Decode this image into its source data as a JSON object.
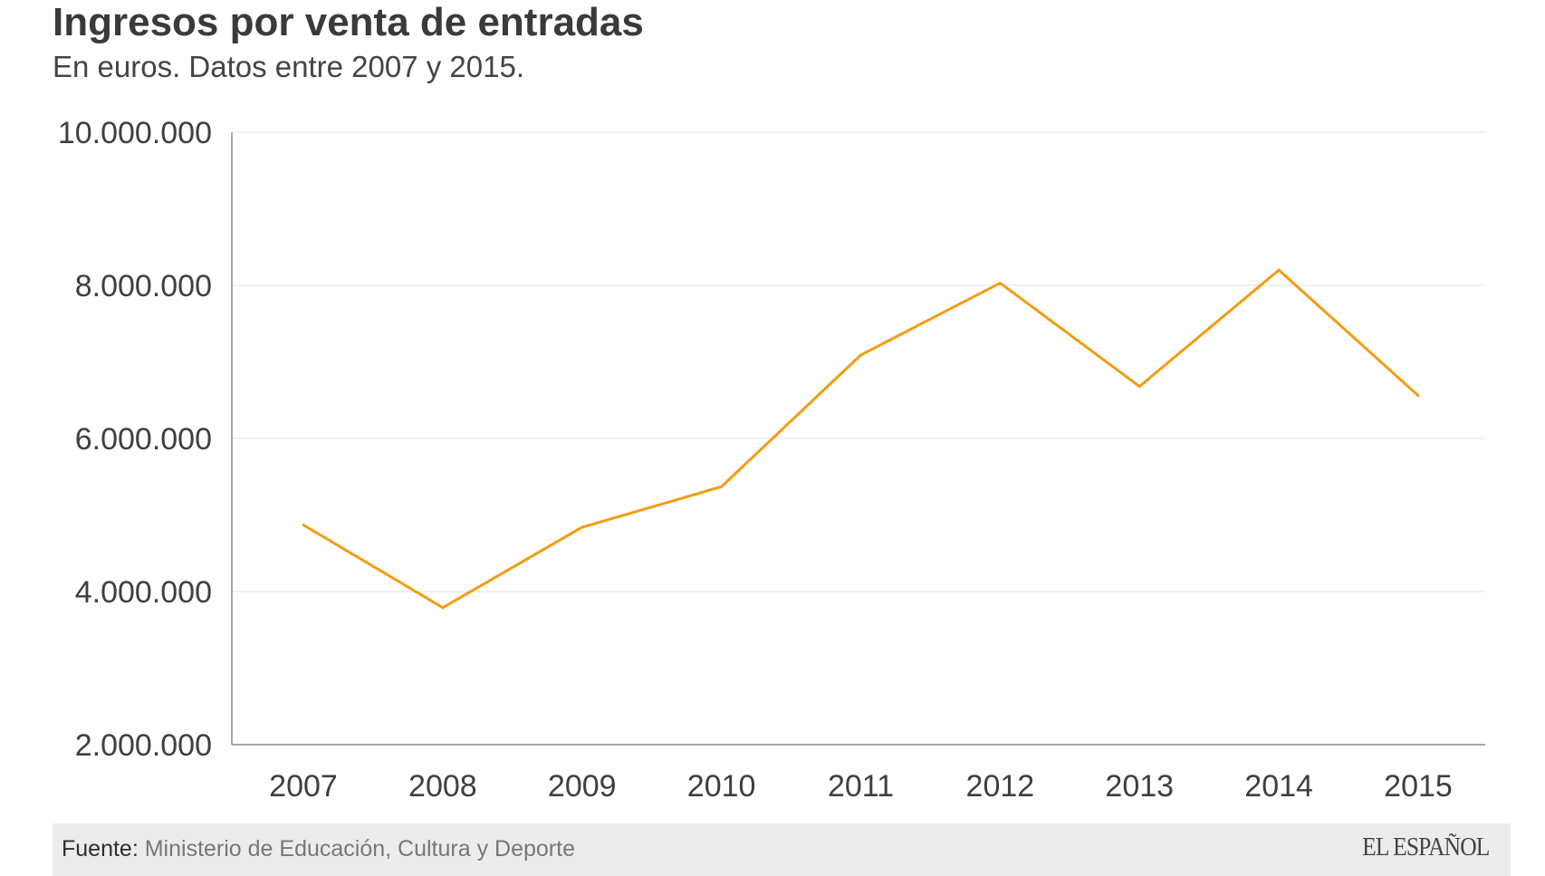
{
  "chart_data": {
    "type": "line",
    "title": "Ingresos por venta de entradas",
    "subtitle": "En euros. Datos entre 2007 y 2015.",
    "categories": [
      "2007",
      "2008",
      "2009",
      "2010",
      "2011",
      "2012",
      "2013",
      "2014",
      "2015"
    ],
    "series": [
      {
        "values": [
          4870000,
          3790000,
          4840000,
          5370000,
          7090000,
          8030000,
          6680000,
          8200000,
          6560000
        ]
      }
    ],
    "ylim": [
      2000000,
      10000000
    ],
    "yticks": [
      2000000,
      4000000,
      6000000,
      8000000,
      10000000
    ],
    "ytick_labels": [
      "2.000.000",
      "4.000.000",
      "6.000.000",
      "8.000.000",
      "10.000.000"
    ],
    "xlabel": "",
    "ylabel": "",
    "grid": true,
    "line_color": "#f39c12"
  },
  "footer": {
    "source_label": "Fuente:",
    "source_text": "Ministerio de Educación, Cultura y Deporte",
    "brand": "EL ESPAÑOL"
  }
}
